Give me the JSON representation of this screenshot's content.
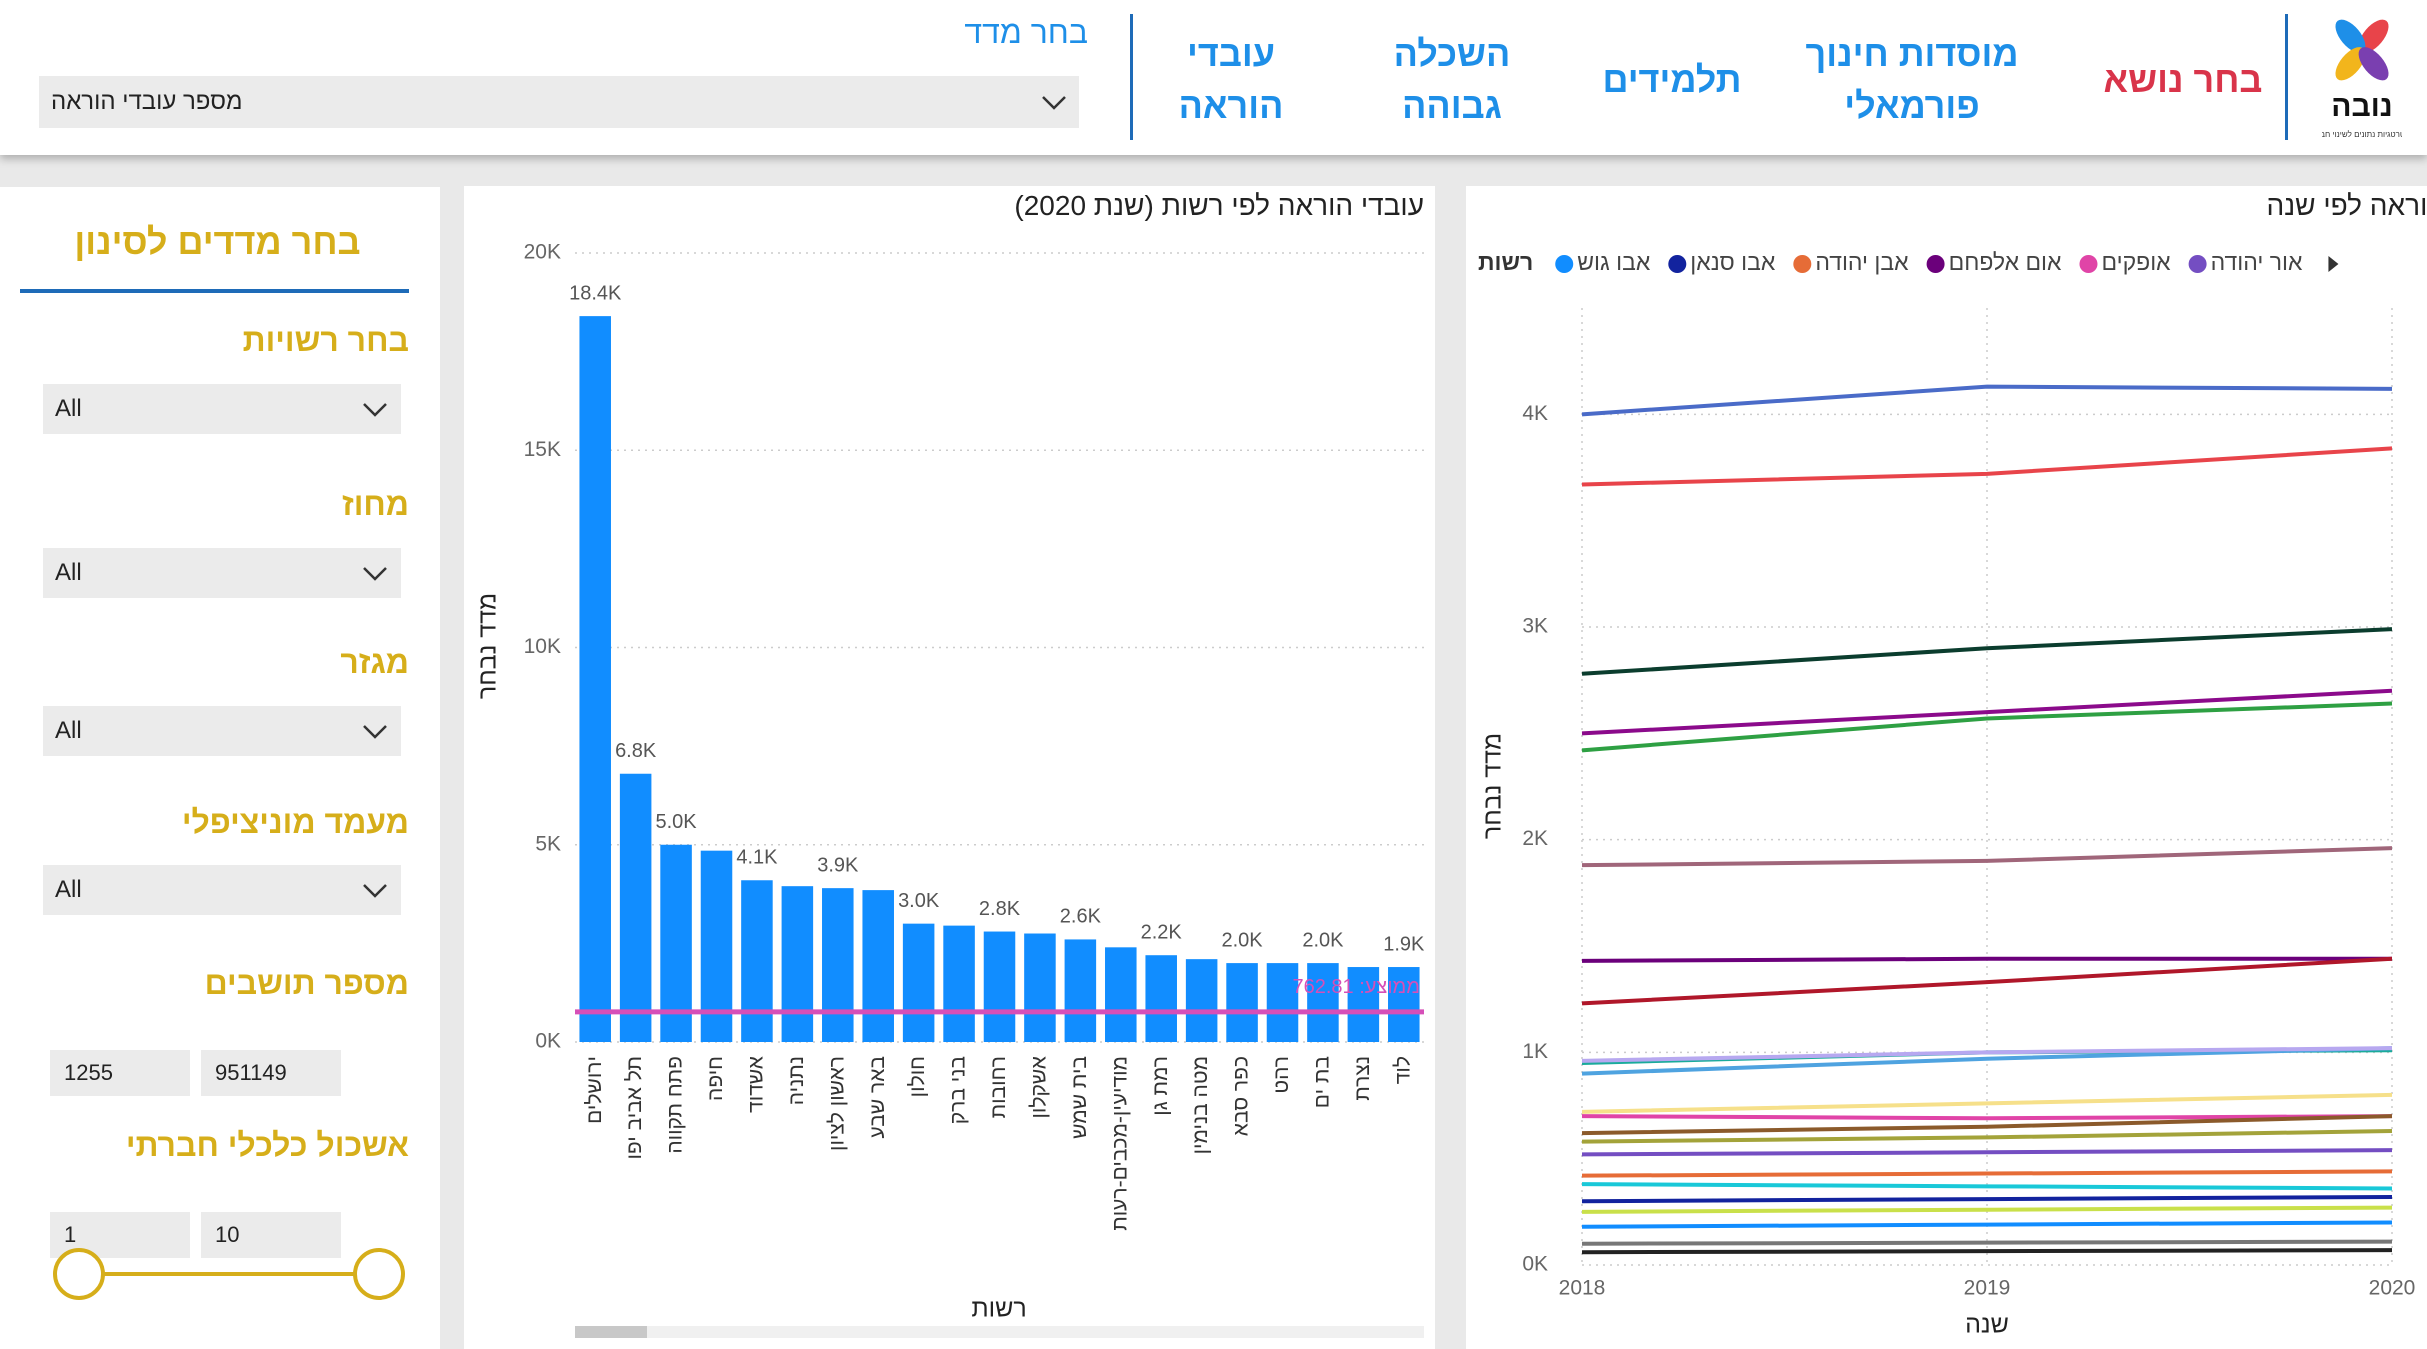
{
  "header": {
    "logo": {
      "name": "נובה",
      "tagline": "אסטרטגיות נתונים לשינוי חברתי"
    },
    "nav_label": "בחר נושא",
    "nav": [
      "מוסדות חינוך פורמאלי",
      "תלמידים",
      "השכלה גבוהה",
      "עובדי הוראה"
    ],
    "measure_label": "בחר מדד",
    "measure_value": "מספר עובדי הוראה"
  },
  "filters": {
    "title": "בחר מדדים לסינון",
    "dropdowns": [
      {
        "label": "בחר רשויות",
        "value": "All"
      },
      {
        "label": "מחוז",
        "value": "All"
      },
      {
        "label": "מגזר",
        "value": "All"
      },
      {
        "label": "מעמד מוניציפלי",
        "value": "All"
      }
    ],
    "ranges": [
      {
        "label": "מספר תושבים",
        "min": 1255,
        "max": 951149
      },
      {
        "label": "אשכול כלכלי חברתי",
        "min": 1,
        "max": 10
      }
    ]
  },
  "chart_data": [
    {
      "type": "bar",
      "title": "עובדי הוראה לפי רשות (שנת 2020)",
      "y_label": "מדד נבחר",
      "x_label": "רשות",
      "categories": [
        "ירושלים",
        "תל אביב יפו",
        "פתח תקווה",
        "חיפה",
        "אשדוד",
        "נתניה",
        "ראשון לציון",
        "באר שבע",
        "חולון",
        "בני ברק",
        "רחובות",
        "אשקלון",
        "בית שמש",
        "מודיעין-מכבים-רעות",
        "רמת גן",
        "מטה בנימין",
        "כפר סבא",
        "רהט",
        "בת ים",
        "נצרת",
        "לוד"
      ],
      "values": [
        18400,
        6800,
        5000,
        4850,
        4100,
        3950,
        3900,
        3850,
        3000,
        2950,
        2800,
        2750,
        2600,
        2400,
        2200,
        2100,
        2000,
        2000,
        2000,
        1900,
        1900
      ],
      "value_labels": [
        "18.4K",
        "6.8K",
        "5.0K",
        null,
        "4.1K",
        null,
        "3.9K",
        null,
        "3.0K",
        null,
        "2.8K",
        null,
        "2.6K",
        null,
        "2.2K",
        null,
        "2.0K",
        null,
        "2.0K",
        null,
        "1.9K"
      ],
      "color": "#118DFF",
      "ylim": [
        0,
        20000
      ],
      "yticks": [
        {
          "value": 0,
          "label": "0K"
        },
        {
          "value": 5000,
          "label": "5K"
        },
        {
          "value": 10000,
          "label": "10K"
        },
        {
          "value": 15000,
          "label": "15K"
        },
        {
          "value": 20000,
          "label": "20K"
        }
      ],
      "grid": true,
      "average_line": {
        "value": 762.81,
        "label": "ממוצע: 762.81",
        "color": "#D64FB8"
      }
    },
    {
      "type": "line",
      "title": "עובדי הוראה לפי שנה",
      "y_label": "מדד נבחר",
      "x_label": "שנה",
      "legend_title": "רשות",
      "x": [
        2018,
        2019,
        2020
      ],
      "xlim": [
        2018,
        2020
      ],
      "xticks": [
        2018,
        2019,
        2020
      ],
      "ylim": [
        0,
        4500
      ],
      "yticks": [
        {
          "value": 0,
          "label": "0K"
        },
        {
          "value": 1000,
          "label": "1K"
        },
        {
          "value": 2000,
          "label": "2K"
        },
        {
          "value": 3000,
          "label": "3K"
        },
        {
          "value": 4000,
          "label": "4K"
        }
      ],
      "grid": true,
      "series": [
        {
          "name": "אבו גוש",
          "color": "#118DFF",
          "values": [
            180,
            190,
            200
          ]
        },
        {
          "name": "אבו סנאן",
          "color": "#12239E",
          "values": [
            300,
            310,
            320
          ]
        },
        {
          "name": "אבן יהודה",
          "color": "#E66C37",
          "values": [
            420,
            430,
            440
          ]
        },
        {
          "name": "אום אלפחם",
          "color": "#6B007B",
          "values": [
            1430,
            1440,
            1440
          ]
        },
        {
          "name": "אופקים",
          "color": "#E044A7",
          "values": [
            700,
            690,
            700
          ]
        },
        {
          "name": "אור יהודה",
          "color": "#744EC2",
          "values": [
            520,
            530,
            540
          ]
        },
        {
          "color": "#4A6BC8",
          "values": [
            4000,
            4130,
            4120
          ]
        },
        {
          "color": "#E8444A",
          "values": [
            3670,
            3720,
            3840
          ]
        },
        {
          "color": "#0B3D2E",
          "values": [
            2780,
            2900,
            2990
          ]
        },
        {
          "color": "#8B0A8B",
          "values": [
            2500,
            2600,
            2700
          ]
        },
        {
          "color": "#2EA043",
          "values": [
            2420,
            2570,
            2640
          ]
        },
        {
          "color": "#A0667A",
          "values": [
            1880,
            1900,
            1960
          ]
        },
        {
          "color": "#B0172A",
          "values": [
            1230,
            1330,
            1440
          ]
        },
        {
          "color": "#1AAB9B",
          "values": [
            950,
            1000,
            1010
          ]
        },
        {
          "color": "#4FA3E0",
          "values": [
            900,
            970,
            1020
          ]
        },
        {
          "color": "#B7A8F0",
          "values": [
            960,
            1000,
            1020
          ]
        },
        {
          "color": "#F6E08A",
          "values": [
            720,
            760,
            800
          ]
        },
        {
          "color": "#8B5A2B",
          "values": [
            620,
            650,
            700
          ]
        },
        {
          "color": "#A3A33A",
          "values": [
            580,
            600,
            630
          ]
        },
        {
          "color": "#19C8D8",
          "values": [
            380,
            370,
            360
          ]
        },
        {
          "color": "#C9E04A",
          "values": [
            250,
            260,
            270
          ]
        },
        {
          "color": "#777777",
          "values": [
            100,
            105,
            110
          ]
        },
        {
          "color": "#222222",
          "values": [
            60,
            65,
            70
          ]
        }
      ]
    }
  ]
}
